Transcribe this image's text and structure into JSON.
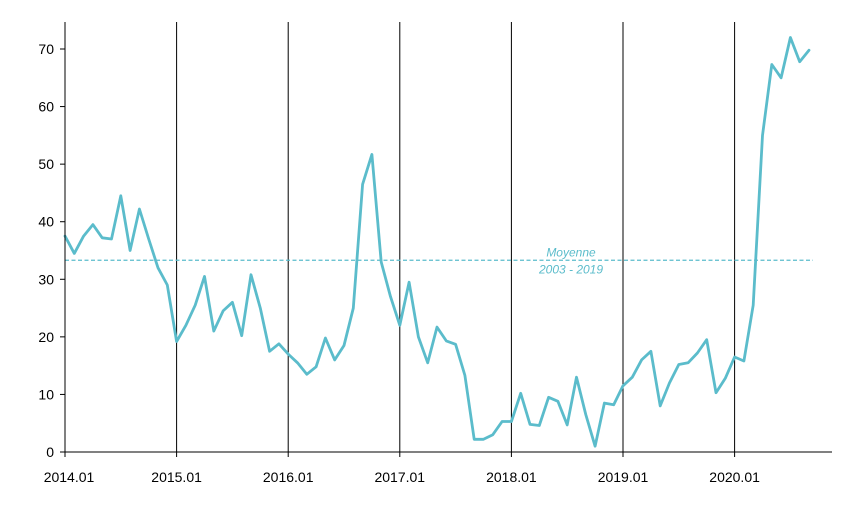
{
  "chart_data": {
    "type": "line",
    "title": "",
    "xlabel": "",
    "ylabel": "",
    "ylim": [
      0,
      75
    ],
    "yticks": [
      0,
      10,
      20,
      30,
      40,
      50,
      60,
      70
    ],
    "x_tick_labels": [
      "2014.01",
      "2015.01",
      "2016.01",
      "2017.01",
      "2018.01",
      "2019.01",
      "2020.01"
    ],
    "grid": {
      "vertical_at_year_starts": true,
      "horizontal": false
    },
    "line_color": "#5bbccb",
    "series": [
      {
        "values": [
          37.5,
          34.5,
          37.5,
          39.5,
          37.2,
          37.0,
          44.5,
          35.0,
          42.2,
          37.0,
          32.0,
          29.0,
          19.2,
          22.0,
          25.5,
          30.5,
          21.0,
          24.5,
          26.0,
          20.2,
          30.8,
          25.0,
          17.5,
          18.8,
          17.0,
          15.5,
          13.5,
          14.8,
          19.8,
          16.0,
          18.5,
          25.0,
          46.5,
          51.7,
          33.0,
          27.0,
          22.0,
          29.5,
          20.0,
          15.5,
          21.7,
          19.3,
          18.7,
          13.3,
          2.2,
          2.2,
          3.0,
          5.3,
          5.3,
          10.2,
          4.8,
          4.6,
          9.5,
          8.8,
          4.7,
          13.0,
          6.5,
          1.0,
          8.5,
          8.2,
          11.5,
          13.0,
          16.0,
          17.5,
          8.0,
          12.0,
          15.2,
          15.5,
          17.2,
          19.5,
          10.3,
          12.8,
          16.5,
          15.8,
          25.5,
          55.0,
          67.3,
          65.0,
          72.0,
          67.8,
          69.8
        ]
      }
    ],
    "reference_line": {
      "value": 33.3,
      "label_line1": "Moyenne",
      "label_line2": "2003 - 2019",
      "style": "dashed",
      "color": "#5bbccb"
    }
  }
}
